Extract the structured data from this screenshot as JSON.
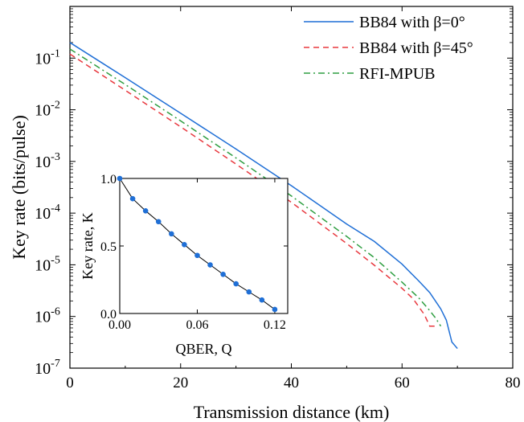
{
  "chart_data": [
    {
      "type": "line",
      "xlabel": "Transmission distance (km)",
      "ylabel": "Key rate (bits/pulse)",
      "xlim": [
        0,
        80
      ],
      "ylim": [
        1e-07,
        1
      ],
      "y_scale": "log",
      "grid": false,
      "legend_position": "top-right",
      "x_ticks": [
        "0",
        "20",
        "40",
        "60",
        "80"
      ],
      "y_ticks": [
        {
          "base": "10",
          "exp": "-1",
          "value": 0.1
        },
        {
          "base": "10",
          "exp": "-2",
          "value": 0.01
        },
        {
          "base": "10",
          "exp": "-3",
          "value": 0.001
        },
        {
          "base": "10",
          "exp": "-4",
          "value": 0.0001
        },
        {
          "base": "10",
          "exp": "-5",
          "value": 1e-05
        },
        {
          "base": "10",
          "exp": "-6",
          "value": 1e-06
        },
        {
          "base": "10",
          "exp": "-7",
          "value": 1e-07
        }
      ],
      "series": [
        {
          "name": "BB84 with β=0°",
          "color": "#1f6fd6",
          "style": "solid",
          "x": [
            0,
            10,
            20,
            30,
            40,
            50,
            55,
            60,
            63,
            65,
            67,
            68,
            69,
            70
          ],
          "y": [
            0.2,
            0.0418,
            0.00857,
            0.00174,
            0.00034,
            6.15e-05,
            2.83e-05,
            1.03e-05,
            4.9e-06,
            2.9e-06,
            1.4e-06,
            8.5e-07,
            3.2e-07,
            2.4e-07
          ]
        },
        {
          "name": "BB84 with β=45°",
          "color": "#e8393f",
          "style": "dashed",
          "x": [
            0,
            10,
            20,
            30,
            40,
            50,
            55,
            60,
            62,
            64,
            65,
            66
          ],
          "y": [
            0.12,
            0.0238,
            0.00468,
            0.00089,
            0.000162,
            2.58e-05,
            9.8e-06,
            3.5e-06,
            2.2e-06,
            1.1e-06,
            6.5e-07,
            6.5e-07
          ]
        },
        {
          "name": "RFI-MPUB",
          "color": "#2e9e40",
          "style": "dashdot",
          "x": [
            0,
            10,
            20,
            30,
            40,
            50,
            55,
            60,
            63,
            65,
            66,
            67
          ],
          "y": [
            0.15,
            0.0308,
            0.0061,
            0.00117,
            0.000215,
            3.54e-05,
            1.37e-05,
            4.6e-06,
            2.3e-06,
            1.3e-06,
            9.5e-07,
            6.5e-07
          ]
        }
      ]
    },
    {
      "type": "line",
      "xlabel": "QBER, Q",
      "ylabel": "Key rate, K",
      "xlim": [
        0,
        0.13
      ],
      "ylim": [
        0,
        1
      ],
      "x_ticks": [
        "0.00",
        "0.06",
        "0.12"
      ],
      "y_ticks": [
        "0.0",
        "0.5",
        "1.0"
      ],
      "series": [
        {
          "color": "#1f6fd6",
          "line_color": "#000000",
          "style": "line+markers",
          "x": [
            0,
            0.01,
            0.02,
            0.03,
            0.04,
            0.05,
            0.06,
            0.07,
            0.08,
            0.09,
            0.1,
            0.11,
            0.12
          ],
          "y": [
            1.0,
            0.85,
            0.76,
            0.68,
            0.59,
            0.51,
            0.43,
            0.36,
            0.29,
            0.22,
            0.16,
            0.1,
            0.03
          ]
        }
      ]
    }
  ]
}
